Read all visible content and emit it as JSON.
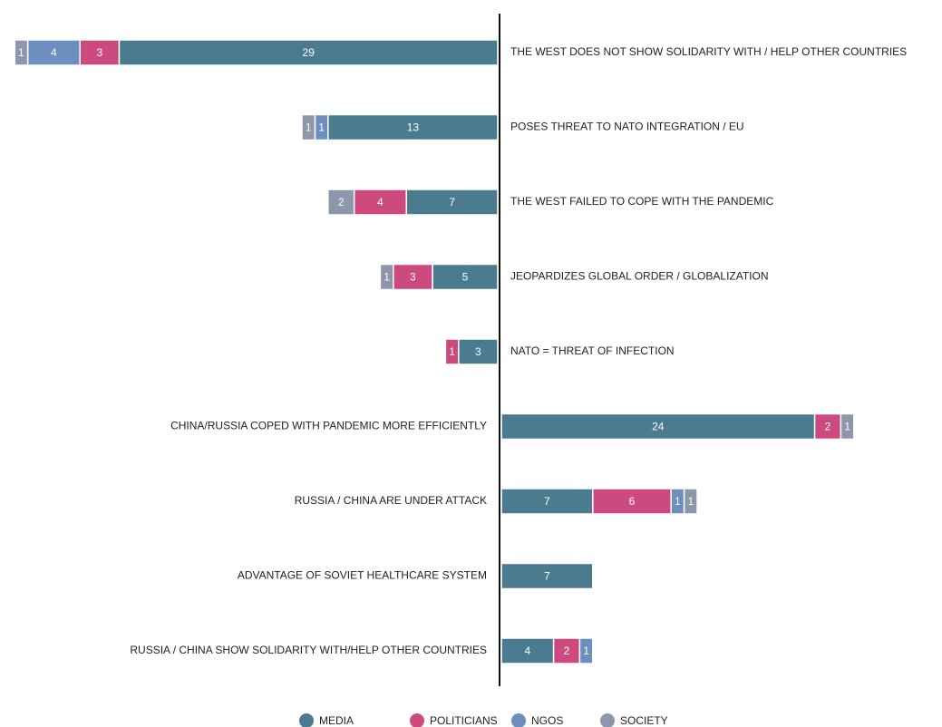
{
  "chart_data": {
    "type": "diverging-stacked-bar",
    "categories": [
      "THE WEST DOES NOT SHOW SOLIDARITY WITH / HELP OTHER COUNTRIES",
      "POSES THREAT TO NATO INTEGRATION / EU",
      "THE WEST FAILED TO COPE WITH THE PANDEMIC",
      "JEOPARDIZES GLOBAL ORDER / GLOBALIZATION",
      "NATO = THREAT OF INFECTION",
      "CHINA/RUSSIA COPED WITH PANDEMIC MORE EFFICIENTLY",
      "RUSSIA / CHINA ARE UNDER ATTACK",
      "ADVANTAGE OF SOVIET HEALTHCARE SYSTEM",
      "RUSSIA / CHINA SHOW SOLIDARITY WITH/HELP OTHER COUNTRIES"
    ],
    "sides": [
      "left",
      "left",
      "left",
      "left",
      "left",
      "right",
      "right",
      "right",
      "right"
    ],
    "series": [
      {
        "name": "MEDIA",
        "color": "#4a7b8f",
        "values": [
          29,
          13,
          7,
          5,
          3,
          24,
          7,
          7,
          4
        ]
      },
      {
        "name": "POLITICIANS",
        "color": "#cc4a7e",
        "values": [
          3,
          null,
          4,
          3,
          1,
          2,
          6,
          null,
          2
        ]
      },
      {
        "name": "NGOS",
        "color": "#6d8fc0",
        "values": [
          4,
          1,
          null,
          null,
          null,
          null,
          1,
          null,
          1
        ]
      },
      {
        "name": "SOCIETY",
        "color": "#8d96ab",
        "values": [
          1,
          1,
          2,
          1,
          null,
          1,
          1,
          null,
          null
        ]
      }
    ],
    "legend": "bottom"
  }
}
